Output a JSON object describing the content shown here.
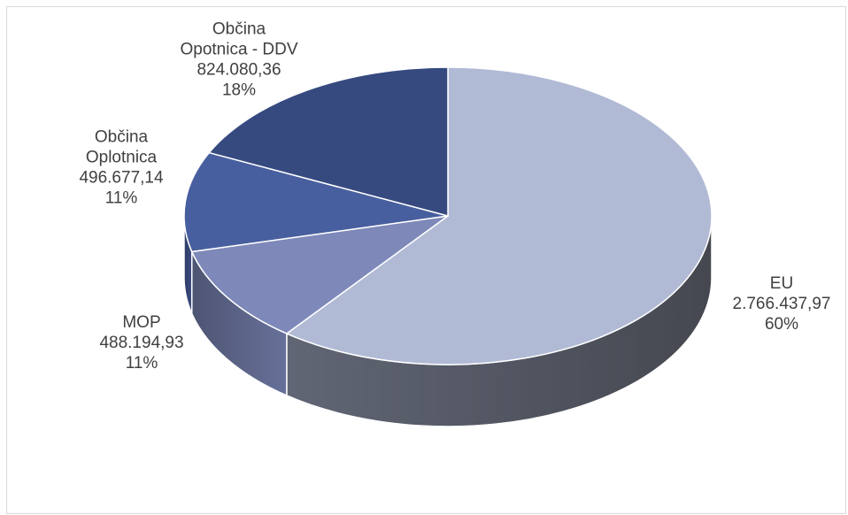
{
  "chart_data": {
    "type": "pie",
    "title": "",
    "three_d": true,
    "legend": "none",
    "slices": [
      {
        "name": "EU",
        "label_lines": [
          "EU"
        ],
        "value": 2766437.97,
        "value_label": "2.766.437,97",
        "percent_label": "60%",
        "color": "#b1bad5"
      },
      {
        "name": "MOP",
        "label_lines": [
          "MOP"
        ],
        "value": 488194.93,
        "value_label": "488.194,93",
        "percent_label": "11%",
        "color": "#7e89ba"
      },
      {
        "name": "Občina Oplotnica",
        "label_lines": [
          "Občina",
          "Oplotnica"
        ],
        "value": 496677.14,
        "value_label": "496.677,14",
        "percent_label": "11%",
        "color": "#485f9f"
      },
      {
        "name": "Občina Opotnica - DDV",
        "label_lines": [
          "Občina",
          "Opotnica - DDV"
        ],
        "value": 824080.36,
        "value_label": "824.080,36",
        "percent_label": "18%",
        "color": "#364a80"
      }
    ]
  }
}
